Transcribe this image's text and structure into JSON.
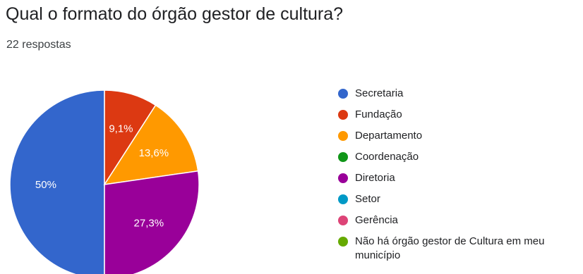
{
  "header": {
    "title": "Qual o formato do órgão gestor de cultura?",
    "subtitle": "22 respostas"
  },
  "chart_data": {
    "type": "pie",
    "slices": [
      {
        "label": "Secretaria",
        "value": 50,
        "display": "50%",
        "color": "#3366cc"
      },
      {
        "label": "Fundação",
        "value": 9.1,
        "display": "9,1%",
        "color": "#dc3912"
      },
      {
        "label": "Departamento",
        "value": 13.6,
        "display": "13,6%",
        "color": "#ff9900"
      },
      {
        "label": "Coordenação",
        "value": 0,
        "display": "",
        "color": "#109618"
      },
      {
        "label": "Diretoria",
        "value": 27.3,
        "display": "27,3%",
        "color": "#990099"
      },
      {
        "label": "Setor",
        "value": 0,
        "display": "",
        "color": "#0099c6"
      },
      {
        "label": "Gerência",
        "value": 0,
        "display": "",
        "color": "#dd4477"
      },
      {
        "label": "Não há órgão gestor de Cultura em meu município",
        "value": 0,
        "display": "",
        "color": "#66aa00"
      }
    ],
    "legend_position": "right"
  }
}
